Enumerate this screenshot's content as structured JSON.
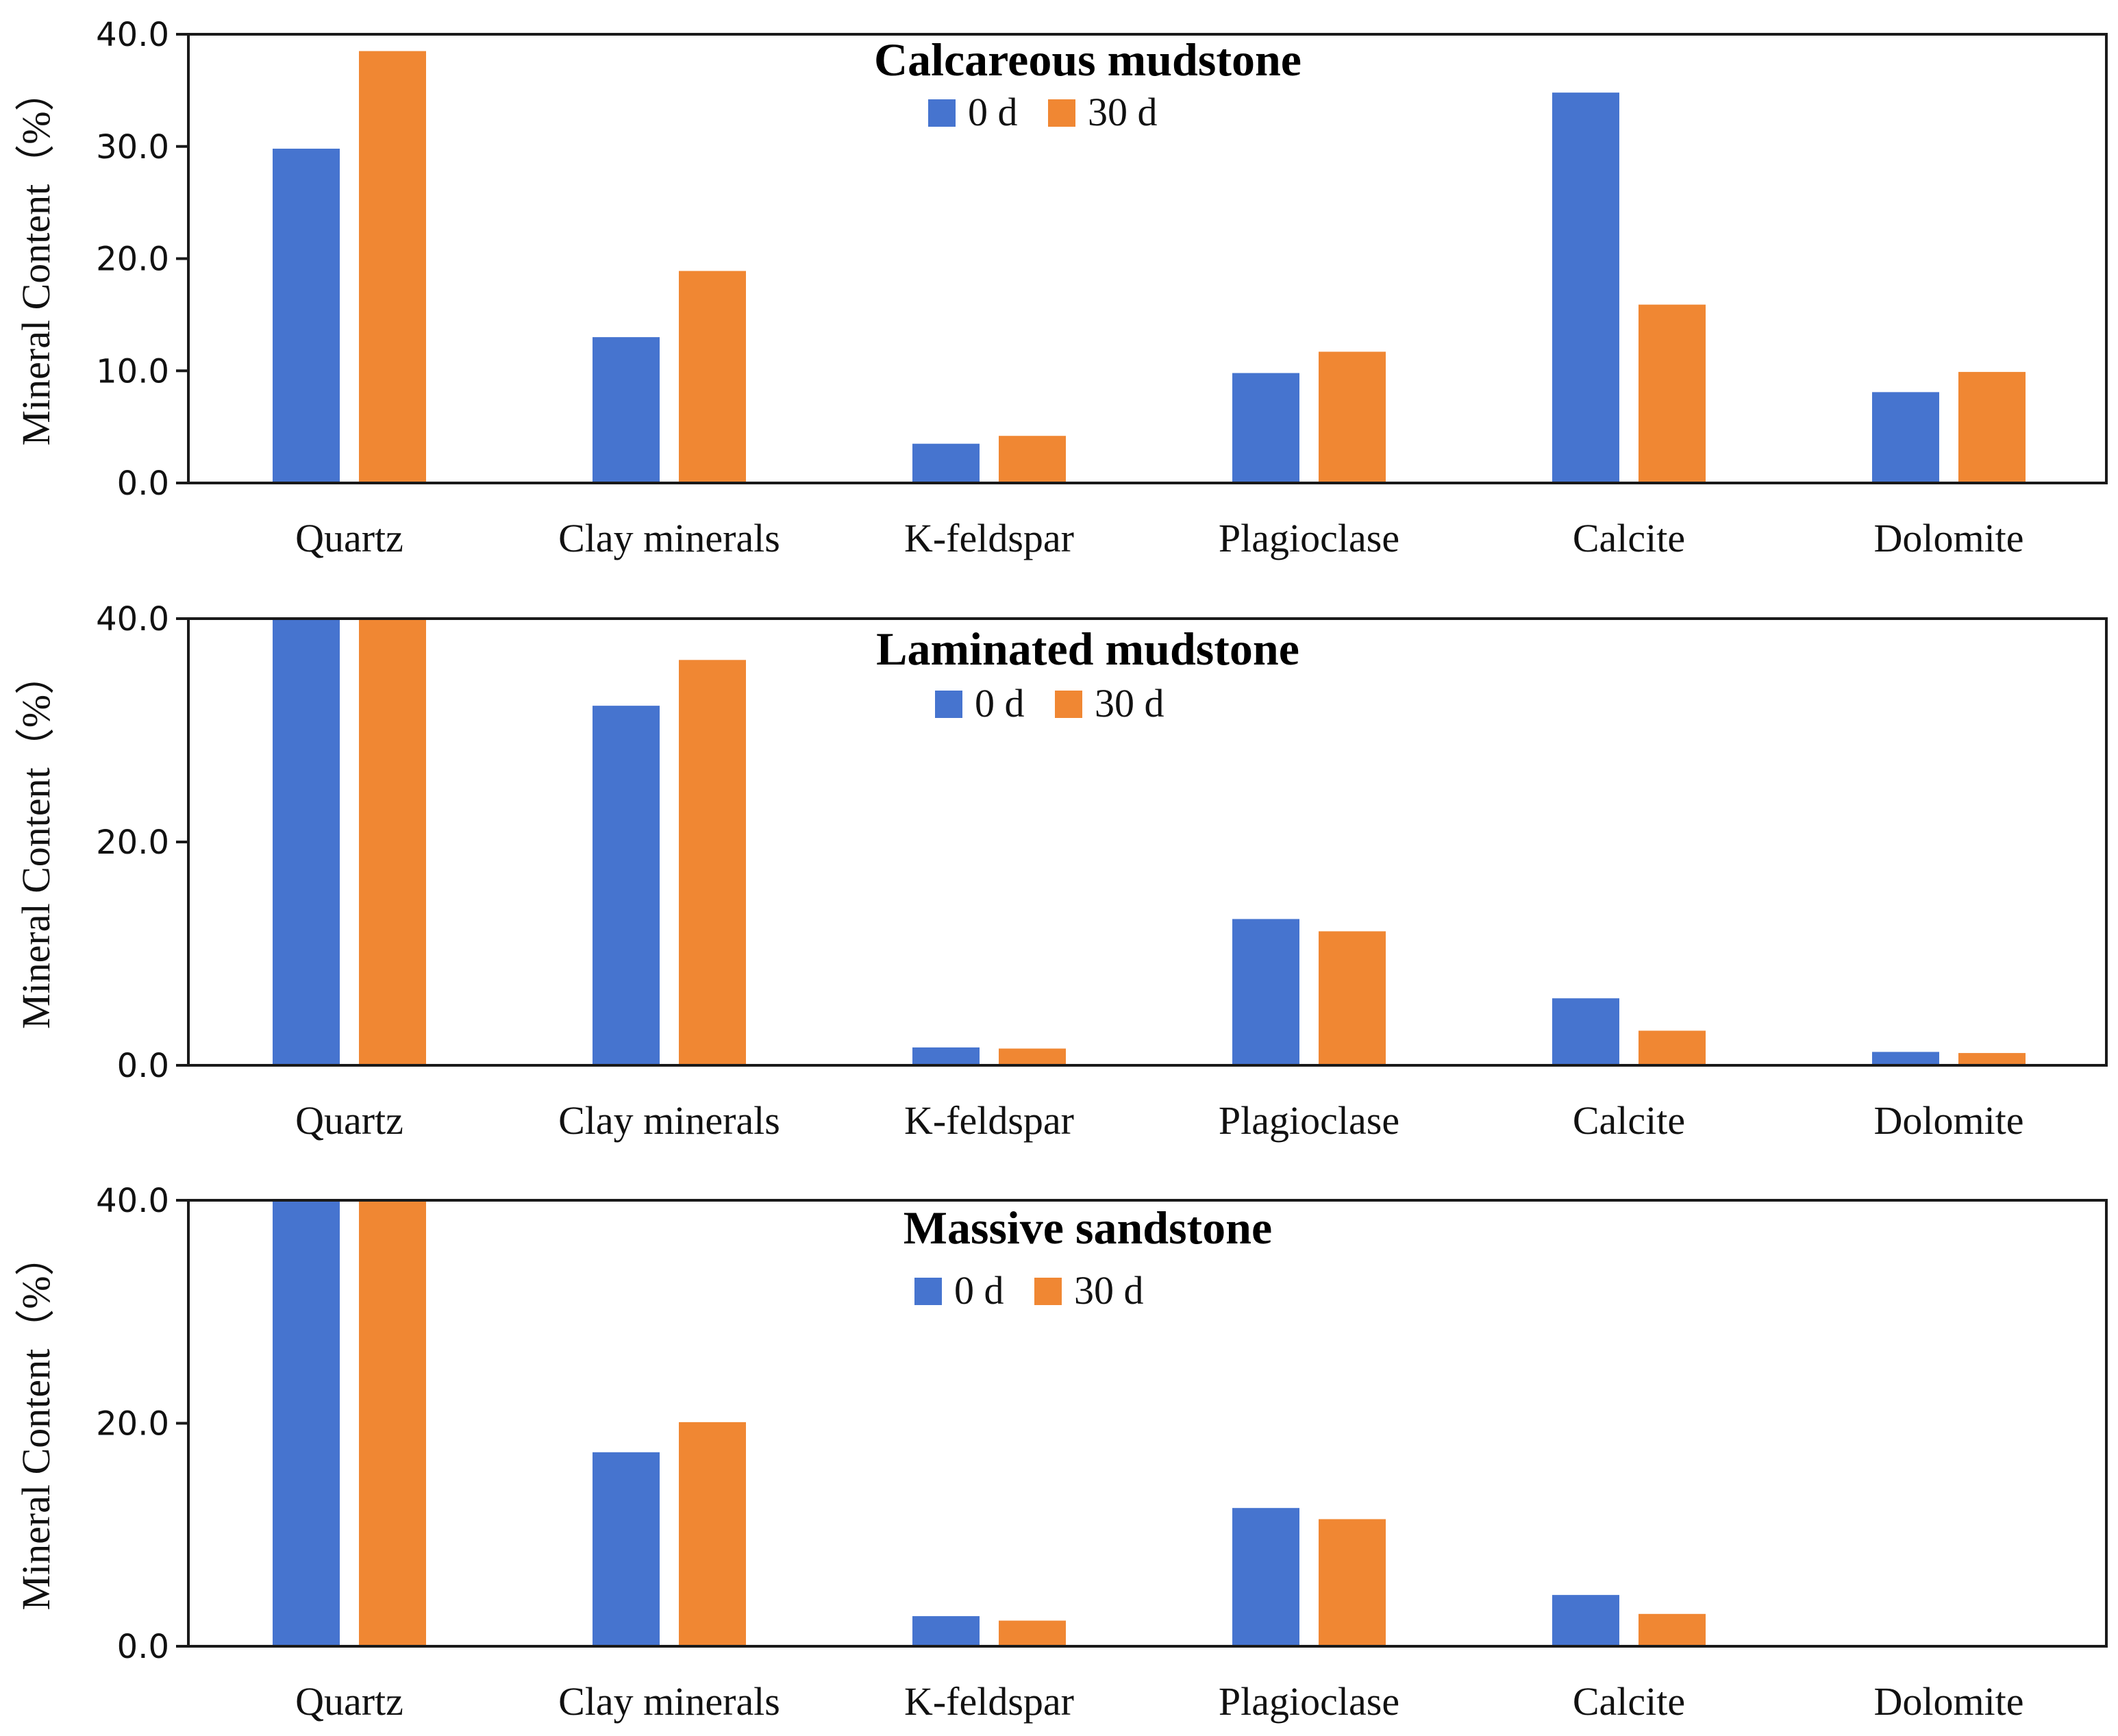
{
  "colors": {
    "series_0d": "#4674CF",
    "series_30d": "#F08733"
  },
  "chart_data": [
    {
      "type": "bar",
      "title": "Calcareous mudstone",
      "ylabel": "Mineral Content（%）",
      "categories": [
        "Quartz",
        "Clay minerals",
        "K-feldspar",
        "Plagioclase",
        "Calcite",
        "Dolomite"
      ],
      "series": [
        {
          "name": "0 d",
          "values": [
            29.8,
            13.0,
            3.5,
            9.8,
            34.8,
            8.1
          ]
        },
        {
          "name": "30 d",
          "values": [
            38.5,
            18.9,
            4.2,
            11.7,
            15.9,
            9.9
          ]
        }
      ],
      "ylim": [
        0,
        40
      ],
      "yticks": [
        0,
        10,
        20,
        30,
        40
      ],
      "ytick_labels": [
        "0.0",
        "10.0",
        "20.0",
        "30.0",
        "40.0"
      ],
      "legend": "top-center",
      "grid": false
    },
    {
      "type": "bar",
      "title": "Laminated mudstone",
      "ylabel": "Mineral Content（%）",
      "categories": [
        "Quartz",
        "Clay minerals",
        "K-feldspar",
        "Plagioclase",
        "Calcite",
        "Dolomite"
      ],
      "series": [
        {
          "name": "0 d",
          "values": [
            40.0,
            32.2,
            1.6,
            13.1,
            6.0,
            1.2
          ]
        },
        {
          "name": "30 d",
          "values": [
            40.0,
            36.3,
            1.5,
            12.0,
            3.1,
            1.1
          ]
        }
      ],
      "ylim": [
        0,
        40
      ],
      "yticks": [
        0,
        20,
        40
      ],
      "ytick_labels": [
        "0.0",
        "20.0",
        "40.0"
      ],
      "legend": "top-center",
      "grid": false
    },
    {
      "type": "bar",
      "title": "Massive sandstone",
      "ylabel": "Mineral Content（%）",
      "categories": [
        "Quartz",
        "Clay minerals",
        "K-feldspar",
        "Plagioclase",
        "Calcite",
        "Dolomite"
      ],
      "series": [
        {
          "name": "0 d",
          "values": [
            40.0,
            17.4,
            2.7,
            12.4,
            4.6,
            0
          ]
        },
        {
          "name": "30 d",
          "values": [
            40.0,
            20.1,
            2.3,
            11.4,
            2.9,
            0
          ]
        }
      ],
      "ylim": [
        0,
        40
      ],
      "yticks": [
        0,
        20,
        40
      ],
      "ytick_labels": [
        "0.0",
        "20.0",
        "40.0"
      ],
      "legend": "top-center",
      "grid": false
    }
  ]
}
